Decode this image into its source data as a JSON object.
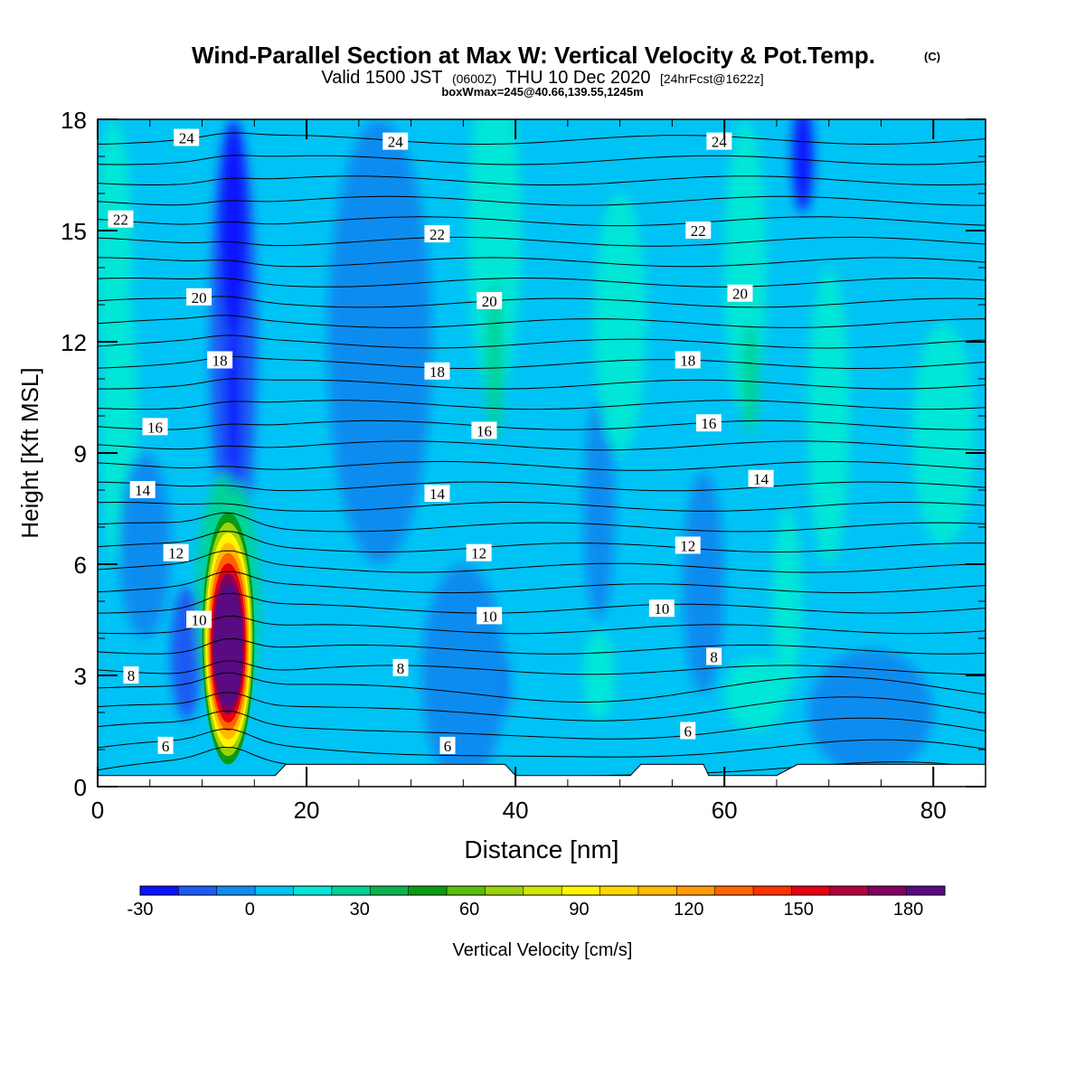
{
  "header": {
    "title": "Wind-Parallel Section at Max W: Vertical Velocity & Pot.Temp.",
    "copyright": "(C)",
    "valid_prefix": "Valid 1500 JST",
    "valid_utc": "(0600Z)",
    "valid_date": "THU 10 Dec 2020",
    "forecast": "[24hrFcst@1622z]",
    "boxwmax": "boxWmax=245@40.66,139.55,1245m"
  },
  "chart_data": {
    "type": "heatmap",
    "title": "Wind-Parallel Section at Max W: Vertical Velocity & Pot.Temp.",
    "xlabel": "Distance [nm]",
    "ylabel": "Height [Kft MSL]",
    "xlim": [
      0,
      85
    ],
    "ylim": [
      0,
      18
    ],
    "x_ticks": [
      0,
      20,
      40,
      60,
      80
    ],
    "y_ticks": [
      0,
      3,
      6,
      9,
      12,
      15,
      18
    ],
    "colorbar": {
      "label": "Vertical Velocity [cm/s]",
      "min": -30,
      "max": 190,
      "step": 10,
      "tick_values": [
        -30,
        0,
        30,
        60,
        90,
        120,
        150,
        180
      ],
      "colors": [
        "#0a14ff",
        "#1e5af5",
        "#0f8cf0",
        "#00c3f5",
        "#00e6d7",
        "#00d296",
        "#0ab450",
        "#0a9b14",
        "#5abe0a",
        "#9bd20a",
        "#d2e600",
        "#fff500",
        "#ffd700",
        "#ffb900",
        "#ff9b00",
        "#ff6400",
        "#ff3200",
        "#e6000f",
        "#b40041",
        "#82005f",
        "#5a0a82"
      ]
    },
    "theta_contours": {
      "label": "Potential temperature",
      "levels": [
        6,
        8,
        10,
        12,
        14,
        16,
        18,
        20,
        22,
        24
      ],
      "labels": [
        {
          "text": "24",
          "x": 8.5,
          "y": 17.5
        },
        {
          "text": "24",
          "x": 28.5,
          "y": 17.4
        },
        {
          "text": "24",
          "x": 59.5,
          "y": 17.4
        },
        {
          "text": "22",
          "x": 2.2,
          "y": 15.3
        },
        {
          "text": "22",
          "x": 32.5,
          "y": 14.9
        },
        {
          "text": "22",
          "x": 57.5,
          "y": 15.0
        },
        {
          "text": "20",
          "x": 9.7,
          "y": 13.2
        },
        {
          "text": "20",
          "x": 37.5,
          "y": 13.1
        },
        {
          "text": "20",
          "x": 61.5,
          "y": 13.3
        },
        {
          "text": "18",
          "x": 11.7,
          "y": 11.5
        },
        {
          "text": "18",
          "x": 32.5,
          "y": 11.2
        },
        {
          "text": "18",
          "x": 56.5,
          "y": 11.5
        },
        {
          "text": "16",
          "x": 5.5,
          "y": 9.7
        },
        {
          "text": "16",
          "x": 37.0,
          "y": 9.6
        },
        {
          "text": "16",
          "x": 58.5,
          "y": 9.8
        },
        {
          "text": "14",
          "x": 4.3,
          "y": 8.0
        },
        {
          "text": "14",
          "x": 32.5,
          "y": 7.9
        },
        {
          "text": "14",
          "x": 63.5,
          "y": 8.3
        },
        {
          "text": "12",
          "x": 7.5,
          "y": 6.3
        },
        {
          "text": "12",
          "x": 36.5,
          "y": 6.3
        },
        {
          "text": "12",
          "x": 56.5,
          "y": 6.5
        },
        {
          "text": "10",
          "x": 9.7,
          "y": 4.5
        },
        {
          "text": "10",
          "x": 37.5,
          "y": 4.6
        },
        {
          "text": "10",
          "x": 54.0,
          "y": 4.8
        },
        {
          "text": "8",
          "x": 3.2,
          "y": 3.0
        },
        {
          "text": "8",
          "x": 29.0,
          "y": 3.2
        },
        {
          "text": "8",
          "x": 59.0,
          "y": 3.5
        },
        {
          "text": "6",
          "x": 6.5,
          "y": 1.1
        },
        {
          "text": "6",
          "x": 33.5,
          "y": 1.1
        },
        {
          "text": "6",
          "x": 56.5,
          "y": 1.5
        }
      ]
    },
    "updraft_max": {
      "x": 12.5,
      "y": 3.8,
      "value": 245
    },
    "terrain": [
      [
        0,
        0.3
      ],
      [
        17,
        0.3
      ],
      [
        18,
        0.6
      ],
      [
        39,
        0.6
      ],
      [
        40,
        0.3
      ],
      [
        51,
        0.3
      ],
      [
        52,
        0.6
      ],
      [
        58,
        0.6
      ],
      [
        58.5,
        0.3
      ],
      [
        65,
        0.3
      ],
      [
        67,
        0.6
      ],
      [
        85,
        0.6
      ]
    ]
  }
}
